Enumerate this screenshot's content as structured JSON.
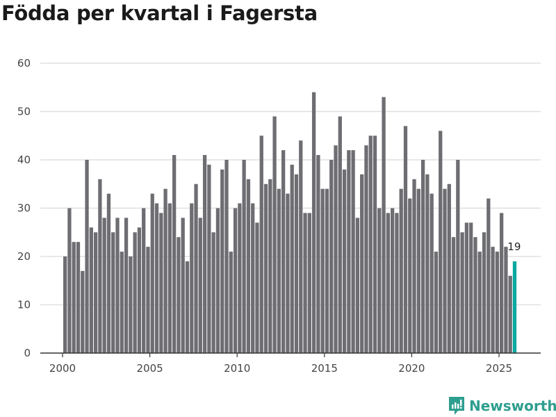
{
  "title": "Födda per kvartal i Fagersta",
  "brand": "Newsworthy",
  "colors": {
    "bar": "#6e6d72",
    "highlight": "#0aa89e",
    "brand": "#2e9e8f"
  },
  "chart_data": {
    "type": "bar",
    "title": "Födda per kvartal i Fagersta",
    "xlabel": "",
    "ylabel": "",
    "ylim": [
      0,
      60
    ],
    "yticks": [
      0,
      10,
      20,
      30,
      40,
      50,
      60
    ],
    "xticks": [
      2000,
      2005,
      2010,
      2015,
      2020,
      2025
    ],
    "start_year": 2000,
    "periods_per_year": 4,
    "values": [
      20,
      30,
      23,
      23,
      17,
      40,
      26,
      25,
      36,
      28,
      33,
      25,
      28,
      21,
      28,
      20,
      25,
      26,
      30,
      22,
      33,
      31,
      29,
      34,
      31,
      41,
      24,
      28,
      19,
      31,
      35,
      28,
      41,
      39,
      25,
      30,
      38,
      40,
      21,
      30,
      31,
      40,
      36,
      31,
      27,
      45,
      35,
      36,
      49,
      34,
      42,
      33,
      39,
      37,
      44,
      29,
      29,
      54,
      41,
      34,
      34,
      40,
      43,
      49,
      38,
      42,
      42,
      28,
      37,
      43,
      45,
      45,
      30,
      53,
      29,
      30,
      29,
      34,
      47,
      32,
      36,
      34,
      40,
      37,
      33,
      21,
      46,
      34,
      35,
      24,
      40,
      25,
      27,
      27,
      24,
      21,
      25,
      32,
      22,
      21,
      29,
      22,
      16,
      19
    ],
    "highlight_label": "19",
    "grid": true
  }
}
